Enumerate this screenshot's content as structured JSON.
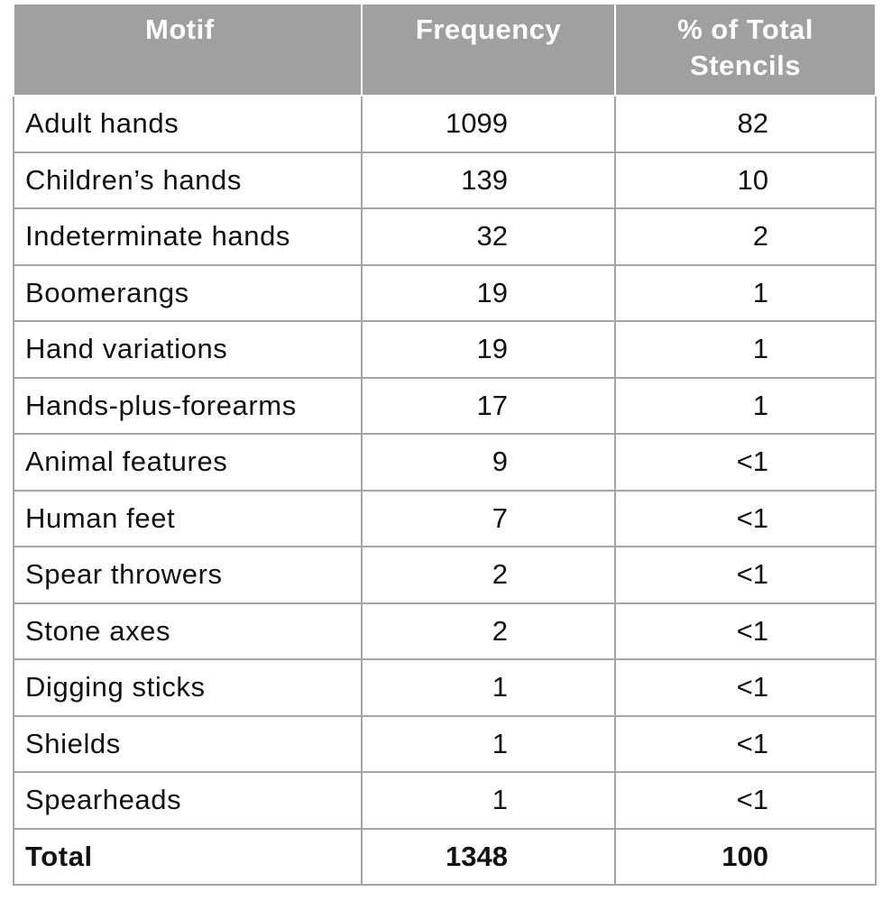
{
  "table": {
    "headers": {
      "motif": "Motif",
      "frequency": "Frequency",
      "percent": "% of Total Stencils"
    },
    "rows": [
      {
        "motif": "Adult hands",
        "frequency": "1099",
        "percent": "82"
      },
      {
        "motif": "Children’s hands",
        "frequency": "139",
        "percent": "10"
      },
      {
        "motif": "Indeterminate hands",
        "frequency": "32",
        "percent": "2"
      },
      {
        "motif": "Boomerangs",
        "frequency": "19",
        "percent": "1"
      },
      {
        "motif": "Hand variations",
        "frequency": "19",
        "percent": "1"
      },
      {
        "motif": "Hands-plus-forearms",
        "frequency": "17",
        "percent": "1"
      },
      {
        "motif": "Animal features",
        "frequency": "9",
        "percent": "<1"
      },
      {
        "motif": "Human feet",
        "frequency": "7",
        "percent": "<1"
      },
      {
        "motif": "Spear throwers",
        "frequency": "2",
        "percent": "<1"
      },
      {
        "motif": "Stone axes",
        "frequency": "2",
        "percent": "<1"
      },
      {
        "motif": "Digging sticks",
        "frequency": "1",
        "percent": "<1"
      },
      {
        "motif": "Shields",
        "frequency": "1",
        "percent": "<1"
      },
      {
        "motif": "Spearheads",
        "frequency": "1",
        "percent": "<1"
      }
    ],
    "total": {
      "motif": "Total",
      "frequency": "1348",
      "percent": "100"
    }
  },
  "colors": {
    "header_bg": "#a0a0a0",
    "header_text": "#ffffff",
    "grid": "#a5a5a5"
  }
}
